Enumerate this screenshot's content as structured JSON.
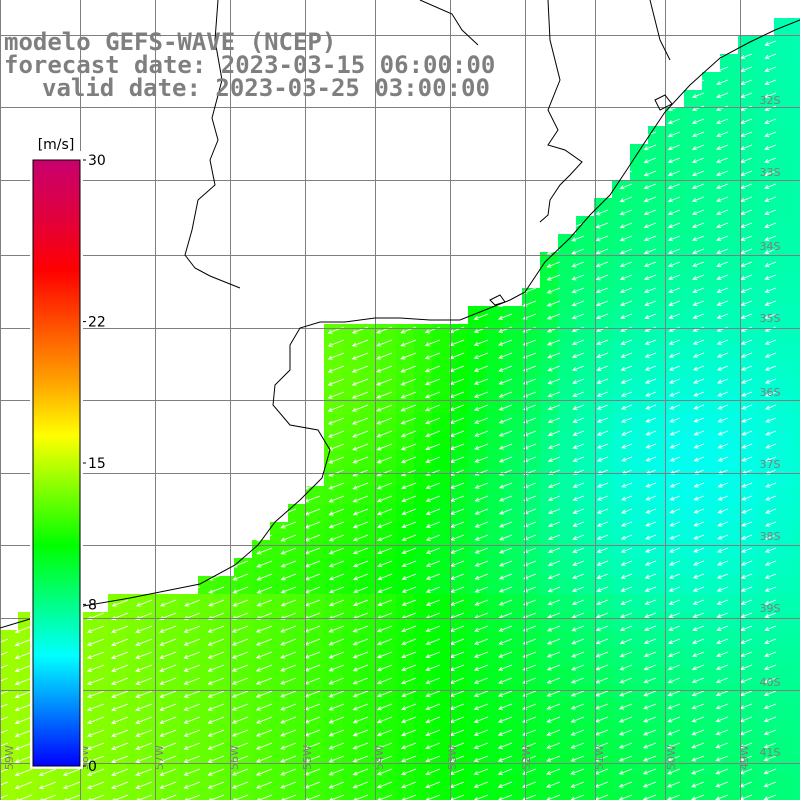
{
  "titles": {
    "line1": "modelo GEFS-WAVE (NCEP)",
    "line2": "forecast date: 2023-03-15 06:00:00",
    "line3": "valid date: 2023-03-25 03:00:00"
  },
  "colorbar": {
    "unit": "[m/s]",
    "ticks": [
      "30",
      "22",
      "15",
      "8",
      "0"
    ],
    "tick_values": [
      30,
      22,
      15,
      8,
      0
    ],
    "range": [
      0,
      30
    ],
    "colors": [
      "#0000ff",
      "#0080ff",
      "#00ffff",
      "#00ff80",
      "#00ff00",
      "#80ff00",
      "#ffff00",
      "#ffa000",
      "#ff5000",
      "#ff0000",
      "#e00040",
      "#c8006e"
    ]
  },
  "latitude_labels": [
    "32S",
    "33S",
    "34S",
    "35S",
    "36S",
    "37S",
    "38S",
    "39S",
    "40S",
    "41S"
  ],
  "longitude_labels": [
    "59W",
    "58W",
    "57W",
    "56W",
    "55W",
    "54W",
    "53W",
    "52W",
    "51W",
    "50W",
    "49W"
  ],
  "map_colors": {
    "land": "#ffffff",
    "coast": "#000000",
    "grid": "#7f7f7f",
    "arrows": "#ffffff"
  }
}
